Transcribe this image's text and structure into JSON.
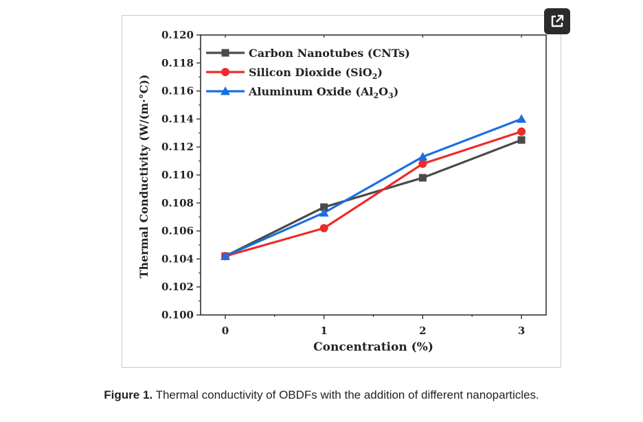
{
  "figure": {
    "caption_label": "Figure 1.",
    "caption_text": " Thermal conductivity of OBDFs with the addition of different nanoparticles.",
    "expand_icon": "open-in-new-icon"
  },
  "chart_data": {
    "type": "line",
    "title": "",
    "xlabel": "Concentration (%)",
    "ylabel": "Thermal Conductivity (W/(m·°C))",
    "x": [
      0,
      1,
      2,
      3
    ],
    "x_tick_labels": [
      "0",
      "1",
      "2",
      "3"
    ],
    "xlim": [
      -0.25,
      3.25
    ],
    "ylim": [
      0.1,
      0.12
    ],
    "y_ticks": [
      0.1,
      0.102,
      0.104,
      0.106,
      0.108,
      0.11,
      0.112,
      0.114,
      0.116,
      0.118,
      0.12
    ],
    "y_tick_labels": [
      "0.100",
      "0.102",
      "0.104",
      "0.106",
      "0.108",
      "0.110",
      "0.112",
      "0.114",
      "0.116",
      "0.118",
      "0.120"
    ],
    "grid": false,
    "legend_position": "top-left",
    "series": [
      {
        "name": "Carbon Nanotubes (CNTs)",
        "label_main": "Carbon Nanotubes (CNTs)",
        "label_sub1": "",
        "label_mid": "",
        "label_sub2": "",
        "label_end": "",
        "color": "#4a4a4a",
        "marker": "square",
        "values": [
          0.1042,
          0.1077,
          0.1098,
          0.1125
        ]
      },
      {
        "name": "Silicon Dioxide (SiO2)",
        "label_main": "Silicon Dioxide (SiO",
        "label_sub1": "2",
        "label_mid": "",
        "label_sub2": "",
        "label_end": ")",
        "color": "#ee2a2a",
        "marker": "circle",
        "values": [
          0.1042,
          0.1062,
          0.1108,
          0.1131
        ]
      },
      {
        "name": "Aluminum Oxide (Al2O3)",
        "label_main": "Aluminum Oxide (Al",
        "label_sub1": "2",
        "label_mid": "O",
        "label_sub2": "3",
        "label_end": ")",
        "color": "#1a6fe0",
        "marker": "triangle",
        "values": [
          0.1042,
          0.1073,
          0.1113,
          0.114
        ]
      }
    ]
  }
}
